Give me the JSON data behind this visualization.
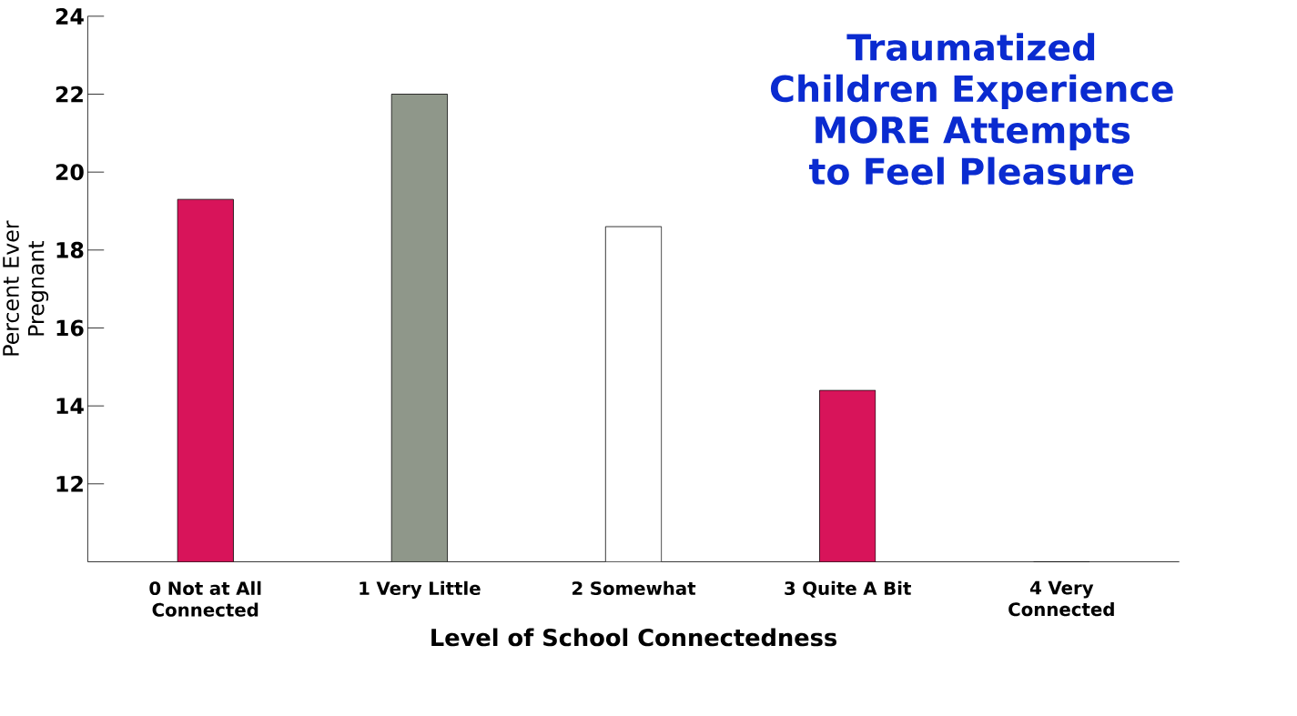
{
  "chart_data": {
    "type": "bar",
    "title": "Traumatized Children Experience MORE Attempts to Feel Pleasure",
    "xlabel": "Level of School Connectedness",
    "ylabel": "Percent Ever Pregnant",
    "categories": [
      "0 Not at All Connected",
      "1 Very Little",
      "2 Somewhat",
      "3 Quite A Bit",
      "4 Very Connected"
    ],
    "values": [
      19.3,
      22.0,
      18.6,
      14.4,
      10.0
    ],
    "colors": [
      "#d8145a",
      "#8f978a",
      "#ffffff",
      "#d8145a",
      "#a8aca4"
    ],
    "ylim": [
      10,
      24
    ],
    "yticks": [
      12,
      14,
      16,
      18,
      20,
      22,
      24
    ],
    "grid": false
  }
}
